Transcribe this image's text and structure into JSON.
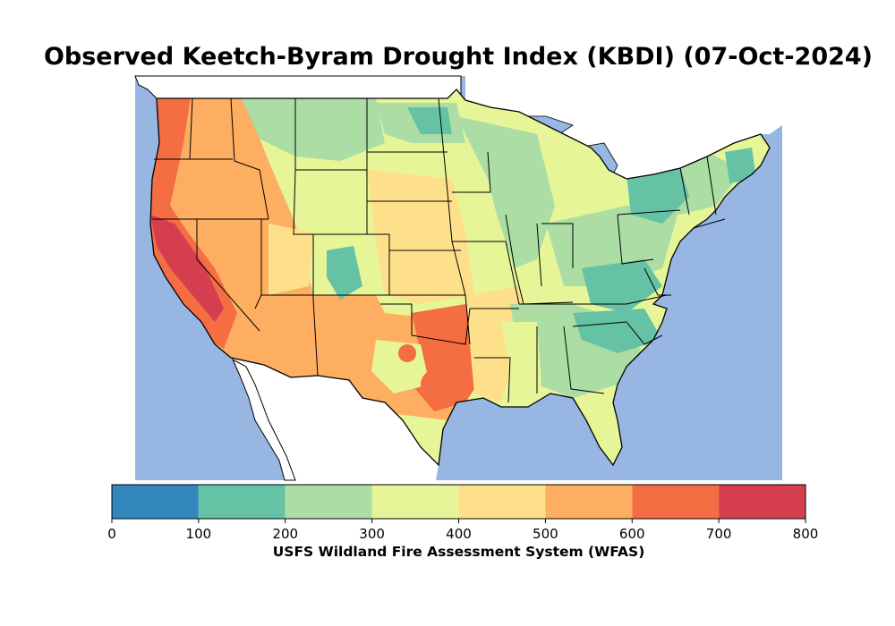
{
  "title": "Observed Keetch-Byram Drought Index (KBDI) (07-Oct-2024)",
  "colorbar": {
    "label": "USFS Wildland Fire Assessment System (WFAS)",
    "ticks": [
      "0",
      "100",
      "200",
      "300",
      "400",
      "500",
      "600",
      "700",
      "800"
    ],
    "min": 0,
    "max": 800,
    "bins": [
      {
        "range": [
          0,
          100
        ],
        "color": "#3288bd"
      },
      {
        "range": [
          100,
          200
        ],
        "color": "#66c2a5"
      },
      {
        "range": [
          200,
          300
        ],
        "color": "#abdda4"
      },
      {
        "range": [
          300,
          400
        ],
        "color": "#e6f598"
      },
      {
        "range": [
          400,
          500
        ],
        "color": "#fee08b"
      },
      {
        "range": [
          500,
          600
        ],
        "color": "#fdae61"
      },
      {
        "range": [
          600,
          700
        ],
        "color": "#f46d43"
      },
      {
        "range": [
          700,
          800
        ],
        "color": "#d53e4f"
      }
    ]
  },
  "colors": {
    "water": "#98b6e2",
    "land_outside": "#ffffff",
    "border": "#000000"
  }
}
